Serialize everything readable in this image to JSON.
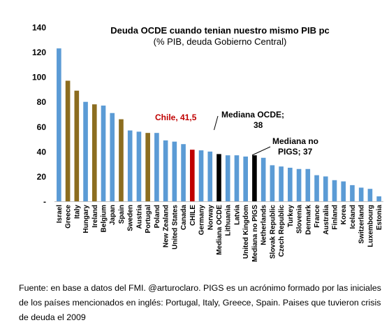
{
  "chart_data": {
    "type": "bar",
    "title": "Deuda OCDE cuando tenian nuestro mismo PIB pc",
    "subtitle": "(% PIB, deuda Gobierno Central)",
    "ylim": [
      0,
      140
    ],
    "yticks": [
      0,
      20,
      40,
      60,
      80,
      100,
      120,
      140
    ],
    "ytick_labels": [
      "-",
      "20",
      "40",
      "60",
      "80",
      "100",
      "120",
      "140"
    ],
    "grid": false,
    "legend": "none",
    "colors": {
      "default": "#5b9bd5",
      "pigs": "#8c6d1f",
      "chile": "#c00000",
      "median": "#000000",
      "annotation_chile": "#c00000",
      "annotation_median": "#000000"
    },
    "categories": [
      "Israel",
      "Greece",
      "Italy",
      "Hungary",
      "Ireland",
      "Belgium",
      "Japan",
      "Spain",
      "Sweden",
      "Austria",
      "Portugal",
      "Poland",
      "New Zealand",
      "United States",
      "Canada",
      "CHILE",
      "Germany",
      "Norway",
      "Mediana OCDE",
      "Lithuania",
      "Latvia",
      "United Kingdom",
      "Mediana no PIGS",
      "Netherlands",
      "Slovak Republic",
      "Czech Republic",
      "Turkey",
      "Slovenia",
      "Denmark",
      "France",
      "Australia",
      "Finland",
      "Korea",
      "Iceland",
      "Switzerland",
      "Luxembourg",
      "Estonia"
    ],
    "values": [
      123,
      97,
      89,
      80,
      78,
      77,
      71,
      66,
      57,
      56,
      55,
      55,
      49,
      48,
      46,
      41.5,
      41,
      40,
      38,
      37,
      37,
      36,
      37,
      35,
      29,
      28,
      27,
      26,
      26,
      21,
      20,
      17,
      16,
      13,
      11,
      10,
      4
    ],
    "bar_groups": [
      "default",
      "pigs",
      "pigs",
      "default",
      "pigs",
      "default",
      "default",
      "pigs",
      "default",
      "default",
      "pigs",
      "default",
      "default",
      "default",
      "default",
      "chile",
      "default",
      "default",
      "median",
      "default",
      "default",
      "default",
      "median",
      "default",
      "default",
      "default",
      "default",
      "default",
      "default",
      "default",
      "default",
      "default",
      "default",
      "default",
      "default",
      "default",
      "default"
    ],
    "annotations": [
      {
        "line1": "Chile,  41,5",
        "line2": "",
        "style": "chile"
      },
      {
        "line1": "Mediana OCDE;",
        "line2": "38",
        "style": "median"
      },
      {
        "line1": "Mediana no",
        "line2": "PIGS;  37",
        "style": "median"
      }
    ]
  },
  "source_note": "Fuente: en base a datos del FMI. @arturoclaro. PIGS es un acrónimo formado por las iniciales de los países mencionados en inglés: Portugal, Italy, Greece, Spain. Paises que tuvieron crisis de deuda el 2009"
}
